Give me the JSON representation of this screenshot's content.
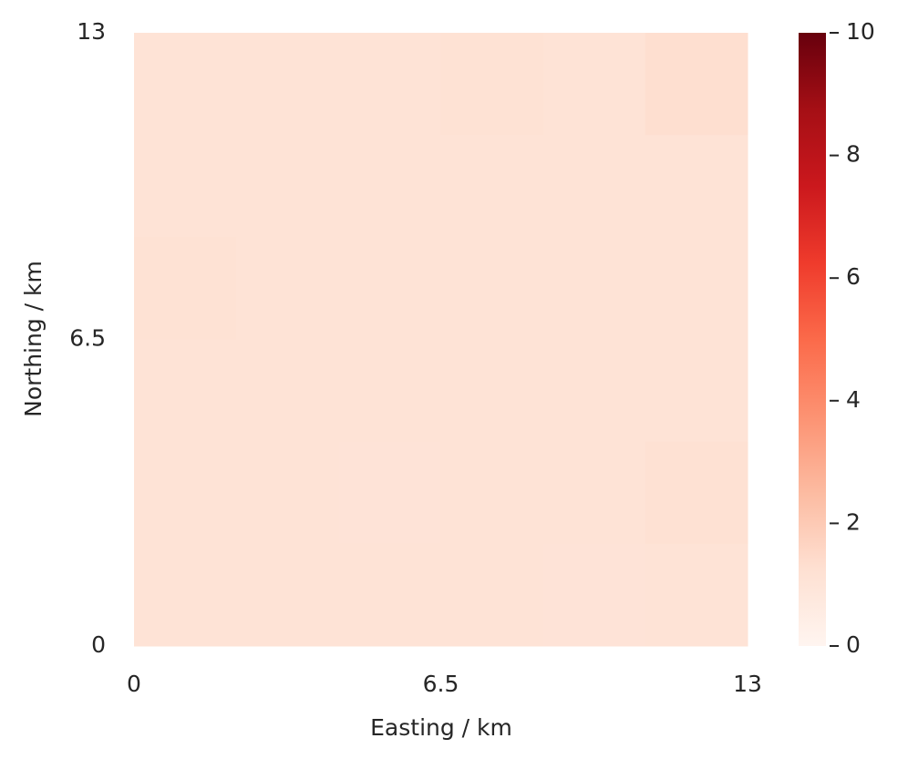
{
  "chart_data": {
    "type": "heatmap",
    "xlabel": "Easting / km",
    "ylabel": "Northing / km",
    "xlim": [
      0,
      13
    ],
    "xticks": [
      0,
      6.5,
      13
    ],
    "ylim": [
      0,
      13
    ],
    "yticks": [
      0,
      6.5,
      13
    ],
    "z": [
      [
        1.1,
        1.1,
        1.1,
        1.15,
        1.1,
        1.3
      ],
      [
        1.1,
        1.1,
        1.1,
        1.1,
        1.1,
        1.1
      ],
      [
        1.15,
        1.1,
        1.1,
        1.1,
        1.1,
        1.1
      ],
      [
        1.1,
        1.1,
        1.1,
        1.1,
        1.1,
        1.1
      ],
      [
        1.1,
        1.1,
        1.05,
        1.1,
        1.1,
        1.2
      ],
      [
        1.1,
        1.1,
        1.1,
        1.1,
        1.05,
        1.1
      ]
    ],
    "clim": [
      0,
      10
    ],
    "cticks": [
      0,
      2,
      4,
      6,
      8,
      10
    ],
    "colorscale": [
      "#fff5f0",
      "#fee0d2",
      "#fcbba1",
      "#fc9272",
      "#fb6a4a",
      "#ef3b2c",
      "#cb181d",
      "#a50f15",
      "#67000d"
    ]
  }
}
